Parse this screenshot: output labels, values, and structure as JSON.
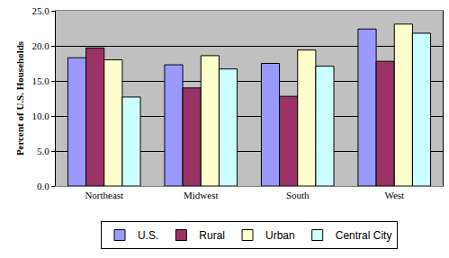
{
  "chart_data": {
    "type": "bar",
    "categories": [
      "Northeast",
      "Midwest",
      "South",
      "West"
    ],
    "series": [
      {
        "name": "U.S.",
        "color": "#9999ff",
        "values": [
          18.3,
          17.3,
          17.5,
          22.4
        ]
      },
      {
        "name": "Rural",
        "color": "#993366",
        "values": [
          19.7,
          14.0,
          12.8,
          17.8
        ]
      },
      {
        "name": "Urban",
        "color": "#ffffcc",
        "values": [
          18.0,
          18.6,
          19.4,
          23.1
        ]
      },
      {
        "name": "Central City",
        "color": "#ccffff",
        "values": [
          12.7,
          16.7,
          17.1,
          21.8
        ]
      }
    ],
    "y_label": "Percent of U.S. Households",
    "ylim": [
      0,
      25
    ],
    "yticks": [
      {
        "value": 0,
        "label": "0.0"
      },
      {
        "value": 5,
        "label": "5.0"
      },
      {
        "value": 10,
        "label": "10.0"
      },
      {
        "value": 15,
        "label": "15.0"
      },
      {
        "value": 20,
        "label": "20.0"
      },
      {
        "value": 25,
        "label": "25.0"
      }
    ],
    "grid": true,
    "legend": "bottom"
  }
}
